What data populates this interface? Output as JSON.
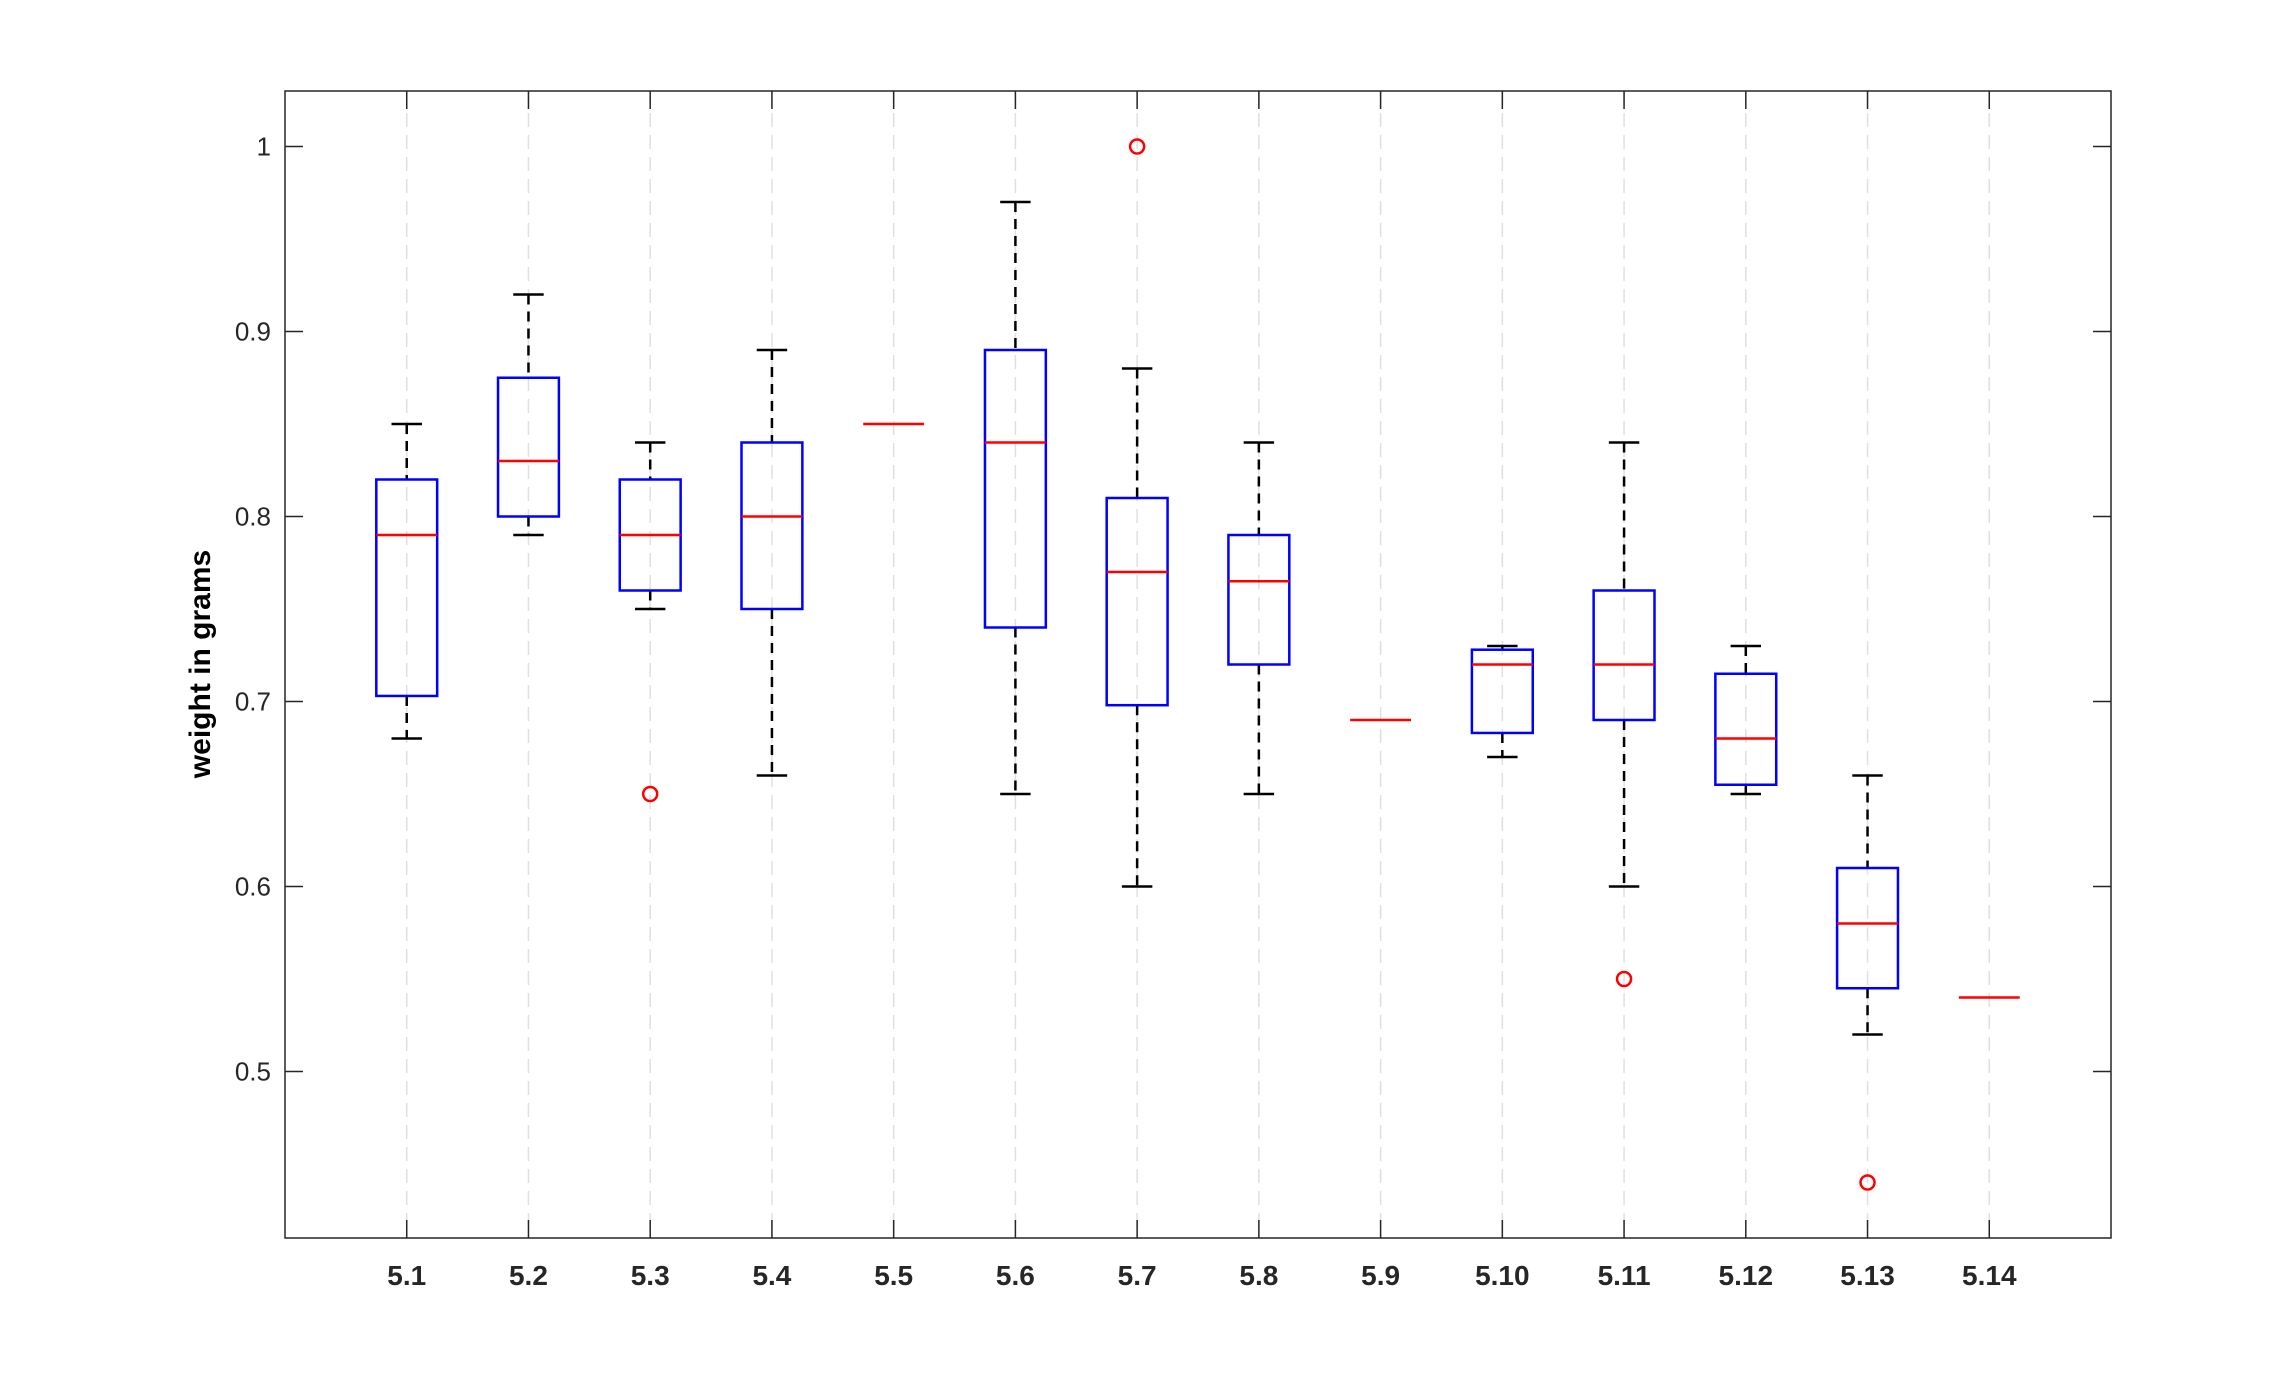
{
  "chart_data": {
    "type": "boxplot",
    "title": "",
    "xlabel": "",
    "ylabel": "weight in grams",
    "ylim": [
      0.41,
      1.03
    ],
    "yticks": [
      0.5,
      0.6,
      0.7,
      0.8,
      0.9,
      1
    ],
    "ytick_labels": [
      "0.5",
      "0.6",
      "0.7",
      "0.8",
      "0.9",
      "1"
    ],
    "grid": "vertical dashed",
    "categories": [
      "5.1",
      "5.2",
      "5.3",
      "5.4",
      "5.5",
      "5.6",
      "5.7",
      "5.8",
      "5.9",
      "5.10",
      "5.11",
      "5.12",
      "5.13",
      "5.14"
    ],
    "boxes": [
      {
        "q1": 0.703,
        "median": 0.79,
        "q3": 0.82,
        "whisker_low": 0.68,
        "whisker_high": 0.85,
        "outliers": []
      },
      {
        "q1": 0.8,
        "median": 0.83,
        "q3": 0.875,
        "whisker_low": 0.79,
        "whisker_high": 0.92,
        "outliers": []
      },
      {
        "q1": 0.76,
        "median": 0.79,
        "q3": 0.82,
        "whisker_low": 0.75,
        "whisker_high": 0.84,
        "outliers": [
          0.65
        ]
      },
      {
        "q1": 0.75,
        "median": 0.8,
        "q3": 0.84,
        "whisker_low": 0.66,
        "whisker_high": 0.89,
        "outliers": []
      },
      {
        "q1": 0.85,
        "median": 0.85,
        "q3": 0.85,
        "whisker_low": 0.85,
        "whisker_high": 0.85,
        "outliers": []
      },
      {
        "q1": 0.74,
        "median": 0.84,
        "q3": 0.89,
        "whisker_low": 0.65,
        "whisker_high": 0.97,
        "outliers": []
      },
      {
        "q1": 0.698,
        "median": 0.77,
        "q3": 0.81,
        "whisker_low": 0.6,
        "whisker_high": 0.88,
        "outliers": [
          1.0
        ]
      },
      {
        "q1": 0.72,
        "median": 0.765,
        "q3": 0.79,
        "whisker_low": 0.65,
        "whisker_high": 0.84,
        "outliers": []
      },
      {
        "q1": 0.69,
        "median": 0.69,
        "q3": 0.69,
        "whisker_low": 0.69,
        "whisker_high": 0.69,
        "outliers": []
      },
      {
        "q1": 0.683,
        "median": 0.72,
        "q3": 0.728,
        "whisker_low": 0.67,
        "whisker_high": 0.73,
        "outliers": []
      },
      {
        "q1": 0.69,
        "median": 0.72,
        "q3": 0.76,
        "whisker_low": 0.6,
        "whisker_high": 0.84,
        "outliers": [
          0.55
        ]
      },
      {
        "q1": 0.655,
        "median": 0.68,
        "q3": 0.715,
        "whisker_low": 0.65,
        "whisker_high": 0.73,
        "outliers": []
      },
      {
        "q1": 0.545,
        "median": 0.58,
        "q3": 0.61,
        "whisker_low": 0.52,
        "whisker_high": 0.66,
        "outliers": [
          0.44
        ]
      },
      {
        "q1": 0.54,
        "median": 0.54,
        "q3": 0.54,
        "whisker_low": 0.54,
        "whisker_high": 0.54,
        "outliers": []
      }
    ],
    "colors": {
      "box": "#0000ff",
      "median": "#ff0000",
      "whisker": "#000000",
      "outlier": "#ff0000",
      "grid": "#e0e0e0",
      "axis": "#262626"
    }
  }
}
